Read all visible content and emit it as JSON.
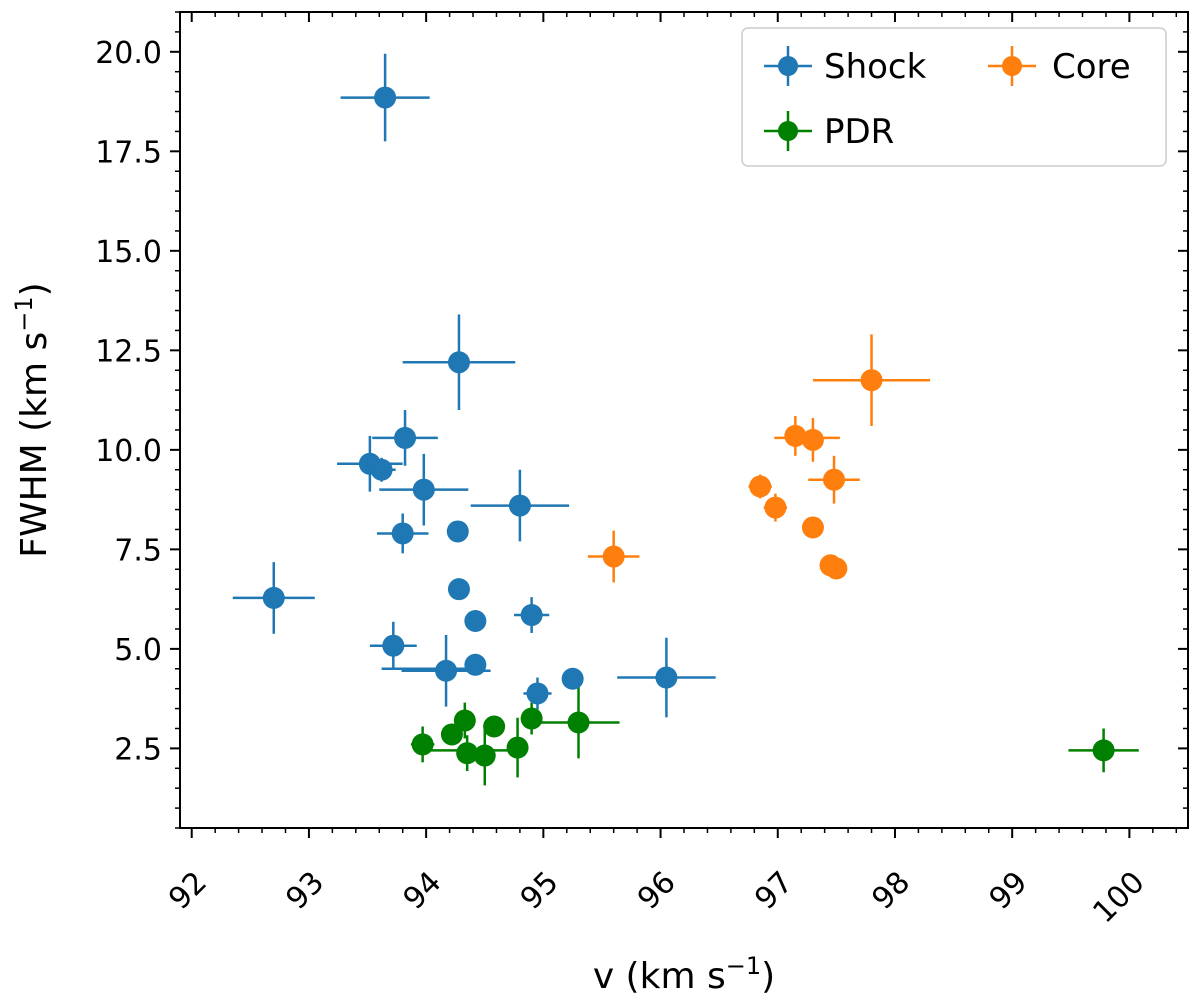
{
  "chart_data": {
    "type": "scatter",
    "title": "",
    "xlabel": "v (km s",
    "xlabel_sup": "−1",
    "xlabel_close": ")",
    "ylabel": "FWHM (km s",
    "ylabel_sup": "−1",
    "ylabel_close": ")",
    "xlim": [
      91.9,
      100.5
    ],
    "ylim": [
      0.5,
      21.0
    ],
    "xticks": [
      92,
      93,
      94,
      95,
      96,
      97,
      98,
      99,
      100
    ],
    "xtick_labels": [
      "92",
      "93",
      "94",
      "95",
      "96",
      "97",
      "98",
      "99",
      "100"
    ],
    "yticks": [
      2.5,
      5.0,
      7.5,
      10.0,
      12.5,
      15.0,
      17.5,
      20.0
    ],
    "ytick_labels": [
      "2.5",
      "5.0",
      "7.5",
      "10.0",
      "12.5",
      "15.0",
      "17.5",
      "20.0"
    ],
    "grid": false,
    "legend_position": "top-right",
    "series": [
      {
        "name": "Shock",
        "color": "#1f77b4",
        "points": [
          {
            "x": 93.65,
            "y": 18.85,
            "xerr": 0.38,
            "yerr": 1.1
          },
          {
            "x": 94.28,
            "y": 12.2,
            "xerr": 0.48,
            "yerr": 1.2
          },
          {
            "x": 93.82,
            "y": 10.3,
            "xerr": 0.28,
            "yerr": 0.7
          },
          {
            "x": 93.52,
            "y": 9.65,
            "xerr": 0.28,
            "yerr": 0.7
          },
          {
            "x": 93.62,
            "y": 9.5,
            "xerr": 0.12,
            "yerr": 0.3
          },
          {
            "x": 93.98,
            "y": 9.0,
            "xerr": 0.38,
            "yerr": 0.9
          },
          {
            "x": 94.8,
            "y": 8.6,
            "xerr": 0.42,
            "yerr": 0.9
          },
          {
            "x": 93.8,
            "y": 7.9,
            "xerr": 0.22,
            "yerr": 0.5
          },
          {
            "x": 94.27,
            "y": 7.95,
            "xerr": 0.0,
            "yerr": 0.0
          },
          {
            "x": 92.7,
            "y": 6.28,
            "xerr": 0.35,
            "yerr": 0.9
          },
          {
            "x": 94.28,
            "y": 6.5,
            "xerr": 0.0,
            "yerr": 0.0
          },
          {
            "x": 94.9,
            "y": 5.85,
            "xerr": 0.15,
            "yerr": 0.45
          },
          {
            "x": 94.42,
            "y": 5.7,
            "xerr": 0.0,
            "yerr": 0.0
          },
          {
            "x": 93.72,
            "y": 5.08,
            "xerr": 0.2,
            "yerr": 0.6
          },
          {
            "x": 94.42,
            "y": 4.6,
            "xerr": 0.0,
            "yerr": 0.0
          },
          {
            "x": 94.17,
            "y": 4.45,
            "xerr": 0.38,
            "yerr": 0.9
          },
          {
            "x": 95.25,
            "y": 4.25,
            "xerr": 0.0,
            "yerr": 0.0
          },
          {
            "x": 96.05,
            "y": 4.28,
            "xerr": 0.42,
            "yerr": 1.0
          },
          {
            "x": 94.95,
            "y": 3.88,
            "xerr": 0.12,
            "yerr": 0.4
          }
        ]
      },
      {
        "name": "PDR",
        "color": "#008000",
        "points": [
          {
            "x": 93.97,
            "y": 2.6,
            "xerr": 0.1,
            "yerr": 0.45
          },
          {
            "x": 94.22,
            "y": 2.85,
            "xerr": 0.0,
            "yerr": 0.0
          },
          {
            "x": 94.33,
            "y": 3.2,
            "xerr": 0.0,
            "yerr": 0.45
          },
          {
            "x": 94.58,
            "y": 3.05,
            "xerr": 0.0,
            "yerr": 0.0
          },
          {
            "x": 94.9,
            "y": 3.25,
            "xerr": 0.0,
            "yerr": 0.4
          },
          {
            "x": 95.3,
            "y": 3.15,
            "xerr": 0.35,
            "yerr": 0.9
          },
          {
            "x": 94.35,
            "y": 2.38,
            "xerr": 0.0,
            "yerr": 0.45
          },
          {
            "x": 94.5,
            "y": 2.32,
            "xerr": 0.0,
            "yerr": 0.75
          },
          {
            "x": 94.78,
            "y": 2.52,
            "xerr": 0.0,
            "yerr": 0.75
          },
          {
            "x": 99.78,
            "y": 2.45,
            "xerr": 0.3,
            "yerr": 0.55
          },
          {
            "x": 94.3,
            "y": 2.38,
            "xerr": 0.0,
            "yerr": 0.0,
            "extra_xerr_line": true
          }
        ]
      },
      {
        "name": "Core",
        "color": "#ff7f0e",
        "points": [
          {
            "x": 97.8,
            "y": 11.75,
            "xerr": 0.5,
            "yerr": 1.15
          },
          {
            "x": 97.15,
            "y": 10.35,
            "xerr": 0.0,
            "yerr": 0.5
          },
          {
            "x": 97.3,
            "y": 10.25,
            "xerr": 0.0,
            "yerr": 0.55
          },
          {
            "x": 97.48,
            "y": 9.25,
            "xerr": 0.22,
            "yerr": 0.6
          },
          {
            "x": 96.85,
            "y": 9.08,
            "xerr": 0.1,
            "yerr": 0.3
          },
          {
            "x": 96.98,
            "y": 8.55,
            "xerr": 0.1,
            "yerr": 0.35
          },
          {
            "x": 97.3,
            "y": 8.05,
            "xerr": 0.0,
            "yerr": 0.0
          },
          {
            "x": 95.6,
            "y": 7.32,
            "xerr": 0.22,
            "yerr": 0.65
          },
          {
            "x": 97.45,
            "y": 7.1,
            "xerr": 0.0,
            "yerr": 0.0
          },
          {
            "x": 97.5,
            "y": 7.02,
            "xerr": 0.0,
            "yerr": 0.0
          }
        ]
      }
    ],
    "extra_error_segments": [
      {
        "series": "Shock",
        "x": 94.0,
        "y": 4.5,
        "xerr": 0.38,
        "note": "horizontal bar near 94 at y 4.5"
      },
      {
        "series": "Core",
        "x": 97.25,
        "y": 10.3,
        "xerr": 0.28,
        "note": "horizontal bar for core pair at ~10.3"
      },
      {
        "series": "PDR",
        "x": 94.4,
        "y": 2.45,
        "xerr": 0.42,
        "note": "horizontal bar for PDR cluster near 2.4"
      }
    ]
  }
}
